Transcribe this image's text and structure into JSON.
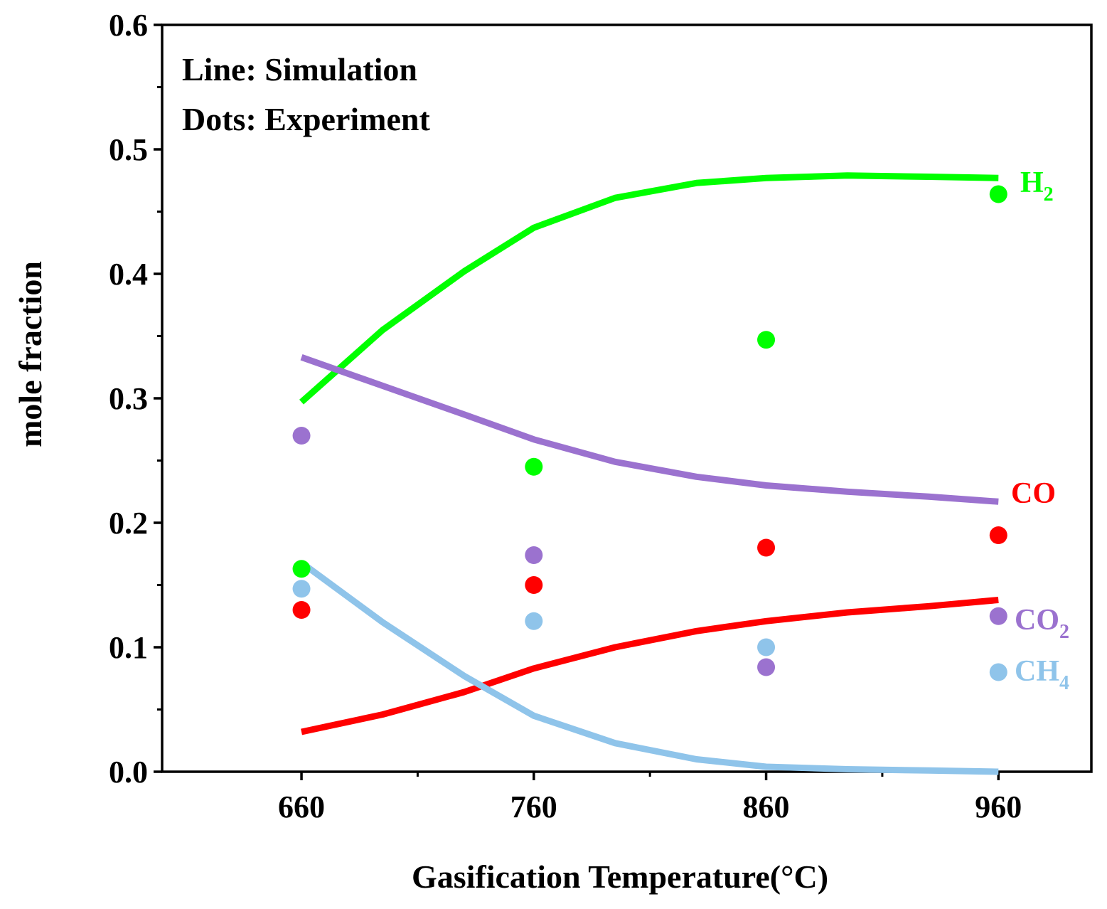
{
  "chart_data": {
    "type": "line",
    "annotations": [
      "Line: Simulation",
      "Dots: Experiment"
    ],
    "xlabel": "Gasification Temperature(°C)",
    "ylabel": "mole fraction",
    "xlim": [
      600,
      1000
    ],
    "ylim": [
      0,
      0.6
    ],
    "x_ticks": [
      660,
      760,
      860,
      960
    ],
    "y_ticks": [
      0.0,
      0.1,
      0.2,
      0.3,
      0.4,
      0.5,
      0.6
    ],
    "y_tick_labels": [
      "0.0",
      "0.1",
      "0.2",
      "0.3",
      "0.4",
      "0.5",
      "0.6"
    ],
    "grid": false,
    "legend": "none",
    "series": [
      {
        "name": "H2",
        "label_main": "H",
        "label_sub": "2",
        "color": "#00ff00",
        "sim_x": [
          660,
          695,
          730,
          760,
          795,
          830,
          860,
          895,
          930,
          960
        ],
        "sim_y": [
          0.297,
          0.355,
          0.402,
          0.437,
          0.461,
          0.473,
          0.477,
          0.479,
          0.478,
          0.477
        ],
        "exp_x": [
          660,
          760,
          860,
          960
        ],
        "exp_y": [
          0.163,
          0.245,
          0.347,
          0.464
        ]
      },
      {
        "name": "CO",
        "label_main": "CO",
        "label_sub": "",
        "color": "#ff0000",
        "sim_x": [
          660,
          695,
          730,
          760,
          795,
          830,
          860,
          895,
          930,
          960
        ],
        "sim_y": [
          0.032,
          0.046,
          0.064,
          0.083,
          0.1,
          0.113,
          0.121,
          0.128,
          0.133,
          0.138
        ],
        "exp_x": [
          660,
          760,
          860,
          960
        ],
        "exp_y": [
          0.13,
          0.15,
          0.18,
          0.19
        ]
      },
      {
        "name": "CO2",
        "label_main": "CO",
        "label_sub": "2",
        "color": "#9b72cf",
        "sim_x": [
          660,
          695,
          730,
          760,
          795,
          830,
          860,
          895,
          930,
          960
        ],
        "sim_y": [
          0.333,
          0.31,
          0.287,
          0.267,
          0.249,
          0.237,
          0.23,
          0.225,
          0.221,
          0.217
        ],
        "exp_x": [
          660,
          760,
          860,
          960
        ],
        "exp_y": [
          0.27,
          0.174,
          0.084,
          0.125
        ]
      },
      {
        "name": "CH4",
        "label_main": "CH",
        "label_sub": "4",
        "color": "#8fc4ea",
        "sim_x": [
          660,
          695,
          730,
          760,
          795,
          830,
          860,
          895,
          930,
          960
        ],
        "sim_y": [
          0.168,
          0.12,
          0.077,
          0.045,
          0.023,
          0.01,
          0.004,
          0.002,
          0.001,
          0.0
        ],
        "exp_x": [
          660,
          760,
          860,
          960
        ],
        "exp_y": [
          0.147,
          0.121,
          0.1,
          0.08
        ]
      }
    ]
  }
}
